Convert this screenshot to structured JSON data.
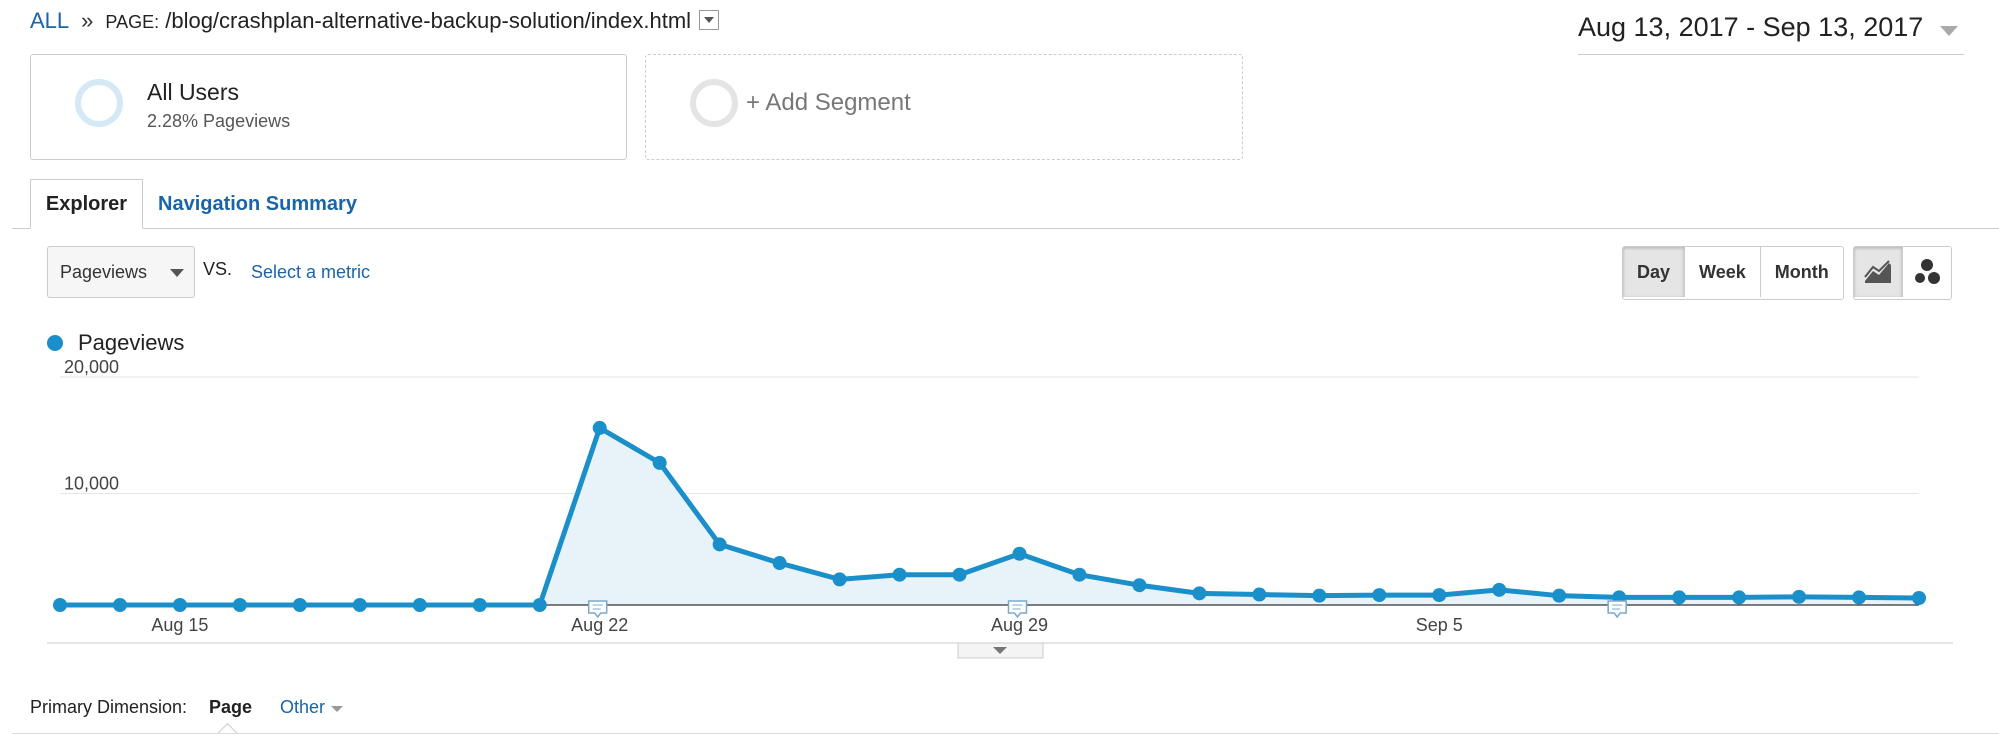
{
  "breadcrumb": {
    "all": "ALL",
    "separator": "»",
    "page_label": "PAGE:",
    "page_path": "/blog/crashplan-alternative-backup-solution/index.html"
  },
  "date_range": "Aug 13, 2017 - Sep 13, 2017",
  "segments": {
    "all_users": {
      "title": "All Users",
      "subtitle": "2.28% Pageviews"
    },
    "add": {
      "label": "+ Add Segment"
    }
  },
  "tabs": [
    {
      "label": "Explorer",
      "active": true
    },
    {
      "label": "Navigation Summary",
      "active": false
    }
  ],
  "metric": {
    "selected": "Pageviews",
    "vs": "VS.",
    "select_link": "Select a metric"
  },
  "period": {
    "options": [
      "Day",
      "Week",
      "Month"
    ],
    "active": "Day"
  },
  "chart_types": {
    "options": [
      "line-chart-icon",
      "motion-chart-icon"
    ],
    "active": "line-chart-icon"
  },
  "legend": {
    "label": "Pageviews",
    "color": "#1a8fc9"
  },
  "chart_data": {
    "type": "area",
    "title": "",
    "series": [
      {
        "name": "Pageviews",
        "values": [
          0,
          0,
          0,
          0,
          0,
          0,
          0,
          0,
          0,
          15200,
          12200,
          5200,
          3600,
          2200,
          2600,
          2600,
          4400,
          2600,
          1700,
          1000,
          900,
          800,
          850,
          850,
          1300,
          800,
          650,
          650,
          650,
          700,
          650,
          600
        ]
      }
    ],
    "x_start_date": "Aug 13",
    "x_tick_labels": [
      {
        "label": "Aug 15",
        "index": 2
      },
      {
        "label": "Aug 22",
        "index": 9
      },
      {
        "label": "Aug 29",
        "index": 16
      },
      {
        "label": "Sep 5",
        "index": 23
      }
    ],
    "y_tick_labels": [
      "20,000",
      "10,000"
    ],
    "ylim": [
      0,
      20000
    ],
    "annotations_at_index": [
      9,
      16,
      26
    ],
    "grid": true,
    "line_color": "#1a8fc9",
    "fill_color": "#e8f2f9"
  },
  "primary_dimension": {
    "label": "Primary Dimension:",
    "selected": "Page",
    "other": "Other"
  }
}
